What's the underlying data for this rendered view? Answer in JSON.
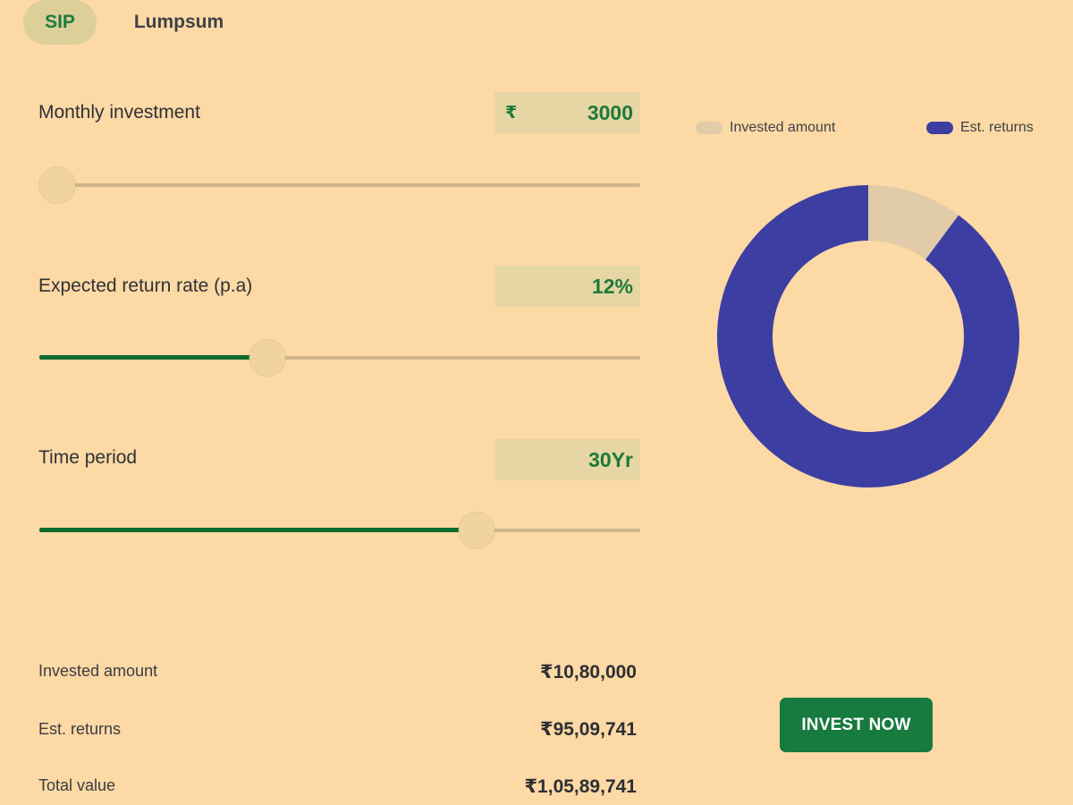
{
  "tabs": [
    {
      "label": "SIP",
      "active": true
    },
    {
      "label": "Lumpsum",
      "active": false
    }
  ],
  "inputs": {
    "monthly": {
      "label": "Monthly investment",
      "currency": "₹",
      "value": "3000",
      "slider_fraction": 0.03
    },
    "rate": {
      "label": "Expected return rate (p.a)",
      "value": "12%",
      "slider_fraction": 0.38
    },
    "period": {
      "label": "Time period",
      "value": "30Yr",
      "slider_fraction": 0.728
    }
  },
  "summary": {
    "invested": {
      "label": "Invested amount",
      "value": "₹10,80,000"
    },
    "returns": {
      "label": "Est. returns",
      "value": "₹95,09,741"
    },
    "total": {
      "label": "Total value",
      "value": "₹1,05,89,741"
    }
  },
  "legend": {
    "invested": {
      "label": "Invested amount",
      "color": "#e2cba8"
    },
    "returns": {
      "label": "Est. returns",
      "color": "#3d3ea1"
    }
  },
  "donut": {
    "invested": 1080000,
    "returns": 9509741
  },
  "cta": {
    "label": "INVEST NOW"
  },
  "colors": {
    "background": "#fcd9a5",
    "accent": "#177a3e",
    "slider_fill": "#0d6b2d"
  }
}
